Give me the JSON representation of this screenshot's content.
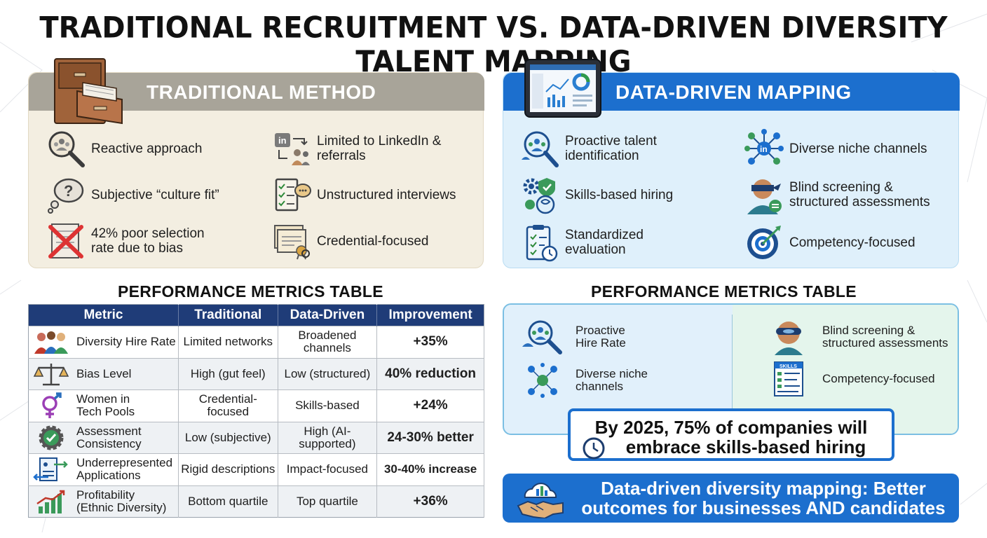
{
  "title": "TRADITIONAL RECRUITMENT VS. DATA-DRIVEN DIVERSITY TALENT MAPPING",
  "traditional": {
    "header": "TRADITIONAL METHOD",
    "items": [
      {
        "icon": "magnifier-people-icon",
        "text": "Reactive approach"
      },
      {
        "icon": "linkedin-referral-icon",
        "text": "Limited to LinkedIn & referrals"
      },
      {
        "icon": "thought-bubble-icon",
        "text": "Subjective “culture fit”"
      },
      {
        "icon": "checklist-chat-icon",
        "text": "Unstructured interviews"
      },
      {
        "icon": "crossed-document-icon",
        "text": "42% poor selection rate due to bias"
      },
      {
        "icon": "certificate-icon",
        "text": "Credential-focused"
      }
    ]
  },
  "datadriven": {
    "header": "DATA-DRIVEN MAPPING",
    "items": [
      {
        "icon": "magnifier-people-icon",
        "text": "Proactive talent identification"
      },
      {
        "icon": "network-icon",
        "text": "Diverse niche channels"
      },
      {
        "icon": "gears-brain-icon",
        "text": "Skills-based hiring"
      },
      {
        "icon": "blindfold-person-icon",
        "text": "Blind screening & structured assessments"
      },
      {
        "icon": "clipboard-clock-icon",
        "text": "Standardized evaluation"
      },
      {
        "icon": "target-icon",
        "text": "Competency-focused"
      }
    ]
  },
  "left_metrics": {
    "title": "PERFORMANCE METRICS TABLE",
    "headers": [
      "Metric",
      "Traditional",
      "Data-Driven",
      "Improvement"
    ],
    "rows": [
      {
        "icon": "people-group-icon",
        "metric": "Diversity Hire Rate",
        "traditional": "Limited networks",
        "datadriven": "Broadened channels",
        "improvement": "+35%"
      },
      {
        "icon": "scales-icon",
        "metric": "Bias Level",
        "traditional": "High (gut feel)",
        "datadriven": "Low (structured)",
        "improvement": "40% reduction"
      },
      {
        "icon": "gender-symbol-icon",
        "metric": "Women in Tech Pools",
        "traditional": "Credential-focused",
        "datadriven": "Skills-based",
        "improvement": "+24%"
      },
      {
        "icon": "gear-check-icon",
        "metric": "Assessment Consistency",
        "traditional": "Low (subjective)",
        "datadriven": "High (AI-supported)",
        "improvement": "24-30% better"
      },
      {
        "icon": "application-arrows-icon",
        "metric": "Underrepresented Applications",
        "traditional": "Rigid descriptions",
        "datadriven": "Impact-focused",
        "improvement": "30-40% increase"
      },
      {
        "icon": "growth-chart-icon",
        "metric": "Profitability (Ethnic Diversity)",
        "traditional": "Bottom quartile",
        "datadriven": "Top quartile",
        "improvement": "+36%"
      }
    ]
  },
  "right_metrics": {
    "title": "PERFORMANCE METRICS TABLE",
    "items": [
      {
        "icon": "magnifier-people-icon",
        "text": "Proactive Hire Rate"
      },
      {
        "icon": "blindfold-person-icon",
        "text": "Blind screening & structured assessments"
      },
      {
        "icon": "network-icon",
        "text": "Diverse niche channels"
      },
      {
        "icon": "skills-document-icon",
        "text": "Competency-focused"
      }
    ]
  },
  "callout": {
    "line1": "By 2025, 75% of companies will",
    "line2": "embrace skills-based hiring"
  },
  "banner": {
    "line1": "Data-driven diversity mapping: Better",
    "line2": "outcomes for businesses AND candidates"
  },
  "colors": {
    "traditional_header": "#a8a499",
    "data_header": "#1c6fce",
    "table_header": "#1f3c78",
    "improvement": "#1f8a2b"
  }
}
